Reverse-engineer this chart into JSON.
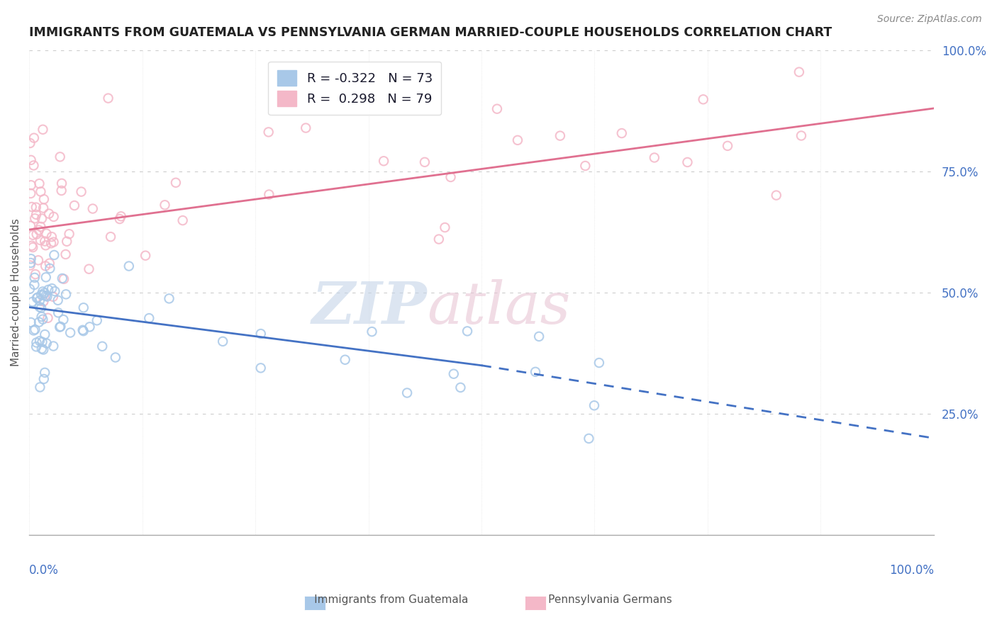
{
  "title": "IMMIGRANTS FROM GUATEMALA VS PENNSYLVANIA GERMAN MARRIED-COUPLE HOUSEHOLDS CORRELATION CHART",
  "source": "Source: ZipAtlas.com",
  "ylabel_label": "Married-couple Households",
  "legend1_label": "R = -0.322   N = 73",
  "legend2_label": "R =  0.298   N = 79",
  "blue_color": "#a8c8e8",
  "pink_color": "#f4b8c8",
  "blue_line_color": "#4472c4",
  "pink_line_color": "#e07090",
  "bottom_legend1": "Immigrants from Guatemala",
  "bottom_legend2": "Pennsylvania Germans",
  "xmin": 0.0,
  "xmax": 100.0,
  "ymin": 0.0,
  "ymax": 100.0,
  "blue_trend_start_x": 0.0,
  "blue_trend_start_y": 47.0,
  "blue_trend_solid_end_x": 50.0,
  "blue_trend_solid_end_y": 35.0,
  "blue_trend_dash_end_x": 100.0,
  "blue_trend_dash_end_y": 20.0,
  "pink_trend_start_x": 0.0,
  "pink_trend_start_y": 63.0,
  "pink_trend_end_x": 100.0,
  "pink_trend_end_y": 88.0
}
